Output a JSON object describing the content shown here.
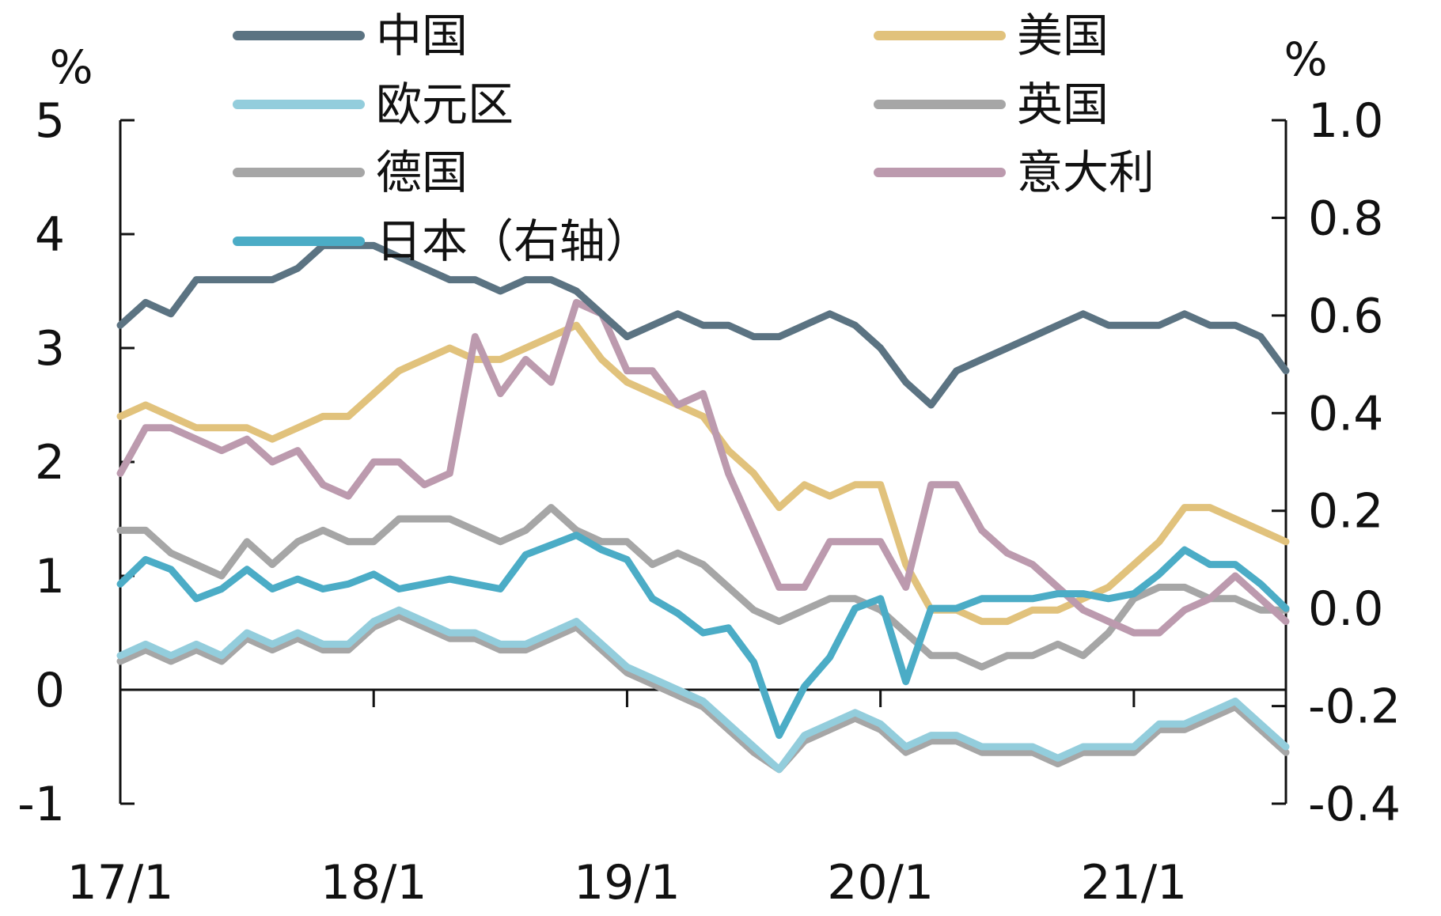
{
  "chart_data": {
    "type": "line",
    "title": "",
    "x_ticks": [
      "17/1",
      "18/1",
      "19/1",
      "20/1",
      "21/1"
    ],
    "left_axis": {
      "unit": "%",
      "ylim": [
        -1,
        5
      ],
      "ticks": [
        "5",
        "4",
        "3",
        "2",
        "1",
        "0",
        "-1"
      ]
    },
    "right_axis": {
      "unit": "%",
      "ylim": [
        -0.4,
        1.0
      ],
      "ticks": [
        "1.0",
        "0.8",
        "0.6",
        "0.4",
        "0.2",
        "0.0",
        "-0.2",
        "-0.4"
      ]
    },
    "legend_placement": "top",
    "x_range": [
      2017.0,
      2021.6
    ],
    "series": [
      {
        "name": "中国",
        "axis": "left",
        "color": "#5B7382",
        "x": [
          2017.0,
          2017.1,
          2017.2,
          2017.3,
          2017.4,
          2017.5,
          2017.6,
          2017.7,
          2017.8,
          2017.9,
          2018.0,
          2018.1,
          2018.2,
          2018.3,
          2018.4,
          2018.5,
          2018.6,
          2018.7,
          2018.8,
          2018.9,
          2019.0,
          2019.1,
          2019.2,
          2019.3,
          2019.4,
          2019.5,
          2019.6,
          2019.7,
          2019.8,
          2019.9,
          2020.0,
          2020.1,
          2020.2,
          2020.3,
          2020.4,
          2020.5,
          2020.6,
          2020.7,
          2020.8,
          2020.9,
          2021.0,
          2021.1,
          2021.2,
          2021.3,
          2021.4,
          2021.5,
          2021.6
        ],
        "y": [
          3.2,
          3.4,
          3.3,
          3.6,
          3.6,
          3.6,
          3.6,
          3.7,
          3.9,
          3.9,
          3.9,
          3.8,
          3.7,
          3.6,
          3.6,
          3.5,
          3.6,
          3.6,
          3.5,
          3.3,
          3.1,
          3.2,
          3.3,
          3.2,
          3.2,
          3.1,
          3.1,
          3.2,
          3.3,
          3.2,
          3.0,
          2.7,
          2.5,
          2.8,
          2.9,
          3.0,
          3.1,
          3.2,
          3.3,
          3.2,
          3.2,
          3.2,
          3.3,
          3.2,
          3.2,
          3.1,
          2.8
        ]
      },
      {
        "name": "美国",
        "axis": "left",
        "color": "#E1C27C",
        "x": [
          2017.0,
          2017.1,
          2017.2,
          2017.3,
          2017.4,
          2017.5,
          2017.6,
          2017.7,
          2017.8,
          2017.9,
          2018.0,
          2018.1,
          2018.2,
          2018.3,
          2018.4,
          2018.5,
          2018.6,
          2018.7,
          2018.8,
          2018.9,
          2019.0,
          2019.1,
          2019.2,
          2019.3,
          2019.4,
          2019.5,
          2019.6,
          2019.7,
          2019.8,
          2019.9,
          2020.0,
          2020.1,
          2020.2,
          2020.3,
          2020.4,
          2020.5,
          2020.6,
          2020.7,
          2020.8,
          2020.9,
          2021.0,
          2021.1,
          2021.2,
          2021.3,
          2021.4,
          2021.5,
          2021.6
        ],
        "y": [
          2.4,
          2.5,
          2.4,
          2.3,
          2.3,
          2.3,
          2.2,
          2.3,
          2.4,
          2.4,
          2.6,
          2.8,
          2.9,
          3.0,
          2.9,
          2.9,
          3.0,
          3.1,
          3.2,
          2.9,
          2.7,
          2.6,
          2.5,
          2.4,
          2.1,
          1.9,
          1.6,
          1.8,
          1.7,
          1.8,
          1.8,
          1.1,
          0.7,
          0.7,
          0.6,
          0.6,
          0.7,
          0.7,
          0.8,
          0.9,
          1.1,
          1.3,
          1.6,
          1.6,
          1.5,
          1.4,
          1.3
        ]
      },
      {
        "name": "欧元区",
        "axis": "left",
        "color": "#93CDDC",
        "x": [
          2017.0,
          2017.1,
          2017.2,
          2017.3,
          2017.4,
          2017.5,
          2017.6,
          2017.7,
          2017.8,
          2017.9,
          2018.0,
          2018.1,
          2018.2,
          2018.3,
          2018.4,
          2018.5,
          2018.6,
          2018.7,
          2018.8,
          2018.9,
          2019.0,
          2019.1,
          2019.2,
          2019.3,
          2019.4,
          2019.5,
          2019.6,
          2019.7,
          2019.8,
          2019.9,
          2020.0,
          2020.1,
          2020.2,
          2020.3,
          2020.4,
          2020.5,
          2020.6,
          2020.7,
          2020.8,
          2020.9,
          2021.0,
          2021.1,
          2021.2,
          2021.3,
          2021.4,
          2021.5,
          2021.6
        ],
        "y": [
          0.3,
          0.4,
          0.3,
          0.4,
          0.3,
          0.5,
          0.4,
          0.5,
          0.4,
          0.4,
          0.6,
          0.7,
          0.6,
          0.5,
          0.5,
          0.4,
          0.4,
          0.5,
          0.6,
          0.4,
          0.2,
          0.1,
          0.0,
          -0.1,
          -0.3,
          -0.5,
          -0.7,
          -0.4,
          -0.3,
          -0.2,
          -0.3,
          -0.5,
          -0.4,
          -0.4,
          -0.5,
          -0.5,
          -0.5,
          -0.6,
          -0.5,
          -0.5,
          -0.5,
          -0.3,
          -0.3,
          -0.2,
          -0.1,
          -0.3,
          -0.5
        ]
      },
      {
        "name": "英国",
        "axis": "left",
        "color": "#A6A6A6",
        "x": [
          2017.0,
          2017.1,
          2017.2,
          2017.3,
          2017.4,
          2017.5,
          2017.6,
          2017.7,
          2017.8,
          2017.9,
          2018.0,
          2018.1,
          2018.2,
          2018.3,
          2018.4,
          2018.5,
          2018.6,
          2018.7,
          2018.8,
          2018.9,
          2019.0,
          2019.1,
          2019.2,
          2019.3,
          2019.4,
          2019.5,
          2019.6,
          2019.7,
          2019.8,
          2019.9,
          2020.0,
          2020.1,
          2020.2,
          2020.3,
          2020.4,
          2020.5,
          2020.6,
          2020.7,
          2020.8,
          2020.9,
          2021.0,
          2021.1,
          2021.2,
          2021.3,
          2021.4,
          2021.5,
          2021.6
        ],
        "y": [
          1.4,
          1.4,
          1.2,
          1.1,
          1.0,
          1.3,
          1.1,
          1.3,
          1.4,
          1.3,
          1.3,
          1.5,
          1.5,
          1.5,
          1.4,
          1.3,
          1.4,
          1.6,
          1.4,
          1.3,
          1.3,
          1.1,
          1.2,
          1.1,
          0.9,
          0.7,
          0.6,
          0.7,
          0.8,
          0.8,
          0.7,
          0.5,
          0.3,
          0.3,
          0.2,
          0.3,
          0.3,
          0.4,
          0.3,
          0.5,
          0.8,
          0.9,
          0.9,
          0.8,
          0.8,
          0.7,
          0.7
        ]
      },
      {
        "name": "德国",
        "axis": "left",
        "color": "#A6A6A6",
        "x": [
          2017.0,
          2017.1,
          2017.2,
          2017.3,
          2017.4,
          2017.5,
          2017.6,
          2017.7,
          2017.8,
          2017.9,
          2018.0,
          2018.1,
          2018.2,
          2018.3,
          2018.4,
          2018.5,
          2018.6,
          2018.7,
          2018.8,
          2018.9,
          2019.0,
          2019.1,
          2019.2,
          2019.3,
          2019.4,
          2019.5,
          2019.6,
          2019.7,
          2019.8,
          2019.9,
          2020.0,
          2020.1,
          2020.2,
          2020.3,
          2020.4,
          2020.5,
          2020.6,
          2020.7,
          2020.8,
          2020.9,
          2021.0,
          2021.1,
          2021.2,
          2021.3,
          2021.4,
          2021.5,
          2021.6
        ],
        "y": [
          0.25,
          0.35,
          0.25,
          0.35,
          0.25,
          0.45,
          0.35,
          0.45,
          0.35,
          0.35,
          0.55,
          0.65,
          0.55,
          0.45,
          0.45,
          0.35,
          0.35,
          0.45,
          0.55,
          0.35,
          0.15,
          0.05,
          -0.05,
          -0.15,
          -0.35,
          -0.55,
          -0.7,
          -0.45,
          -0.35,
          -0.25,
          -0.35,
          -0.55,
          -0.45,
          -0.45,
          -0.55,
          -0.55,
          -0.55,
          -0.65,
          -0.55,
          -0.55,
          -0.55,
          -0.35,
          -0.35,
          -0.25,
          -0.15,
          -0.35,
          -0.55
        ]
      },
      {
        "name": "意大利",
        "axis": "left",
        "color": "#BC9AAE",
        "x": [
          2017.0,
          2017.1,
          2017.2,
          2017.3,
          2017.4,
          2017.5,
          2017.6,
          2017.7,
          2017.8,
          2017.9,
          2018.0,
          2018.1,
          2018.2,
          2018.3,
          2018.4,
          2018.5,
          2018.6,
          2018.7,
          2018.8,
          2018.9,
          2019.0,
          2019.1,
          2019.2,
          2019.3,
          2019.4,
          2019.5,
          2019.6,
          2019.7,
          2019.8,
          2019.9,
          2020.0,
          2020.1,
          2020.2,
          2020.3,
          2020.4,
          2020.5,
          2020.6,
          2020.7,
          2020.8,
          2020.9,
          2021.0,
          2021.1,
          2021.2,
          2021.3,
          2021.4,
          2021.5,
          2021.6
        ],
        "y": [
          1.9,
          2.3,
          2.3,
          2.2,
          2.1,
          2.2,
          2.0,
          2.1,
          1.8,
          1.7,
          2.0,
          2.0,
          1.8,
          1.9,
          3.1,
          2.6,
          2.9,
          2.7,
          3.4,
          3.3,
          2.8,
          2.8,
          2.5,
          2.6,
          1.9,
          1.4,
          0.9,
          0.9,
          1.3,
          1.3,
          1.3,
          0.9,
          1.8,
          1.8,
          1.4,
          1.2,
          1.1,
          0.9,
          0.7,
          0.6,
          0.5,
          0.5,
          0.7,
          0.8,
          1.0,
          0.8,
          0.6
        ]
      },
      {
        "name": "日本（右轴）",
        "axis": "right",
        "color": "#4BACC6",
        "x": [
          2017.0,
          2017.1,
          2017.2,
          2017.3,
          2017.4,
          2017.5,
          2017.6,
          2017.7,
          2017.8,
          2017.9,
          2018.0,
          2018.1,
          2018.2,
          2018.3,
          2018.4,
          2018.5,
          2018.6,
          2018.7,
          2018.8,
          2018.9,
          2019.0,
          2019.1,
          2019.2,
          2019.3,
          2019.4,
          2019.5,
          2019.6,
          2019.7,
          2019.8,
          2019.9,
          2020.0,
          2020.1,
          2020.2,
          2020.3,
          2020.4,
          2020.5,
          2020.6,
          2020.7,
          2020.8,
          2020.9,
          2021.0,
          2021.1,
          2021.2,
          2021.3,
          2021.4,
          2021.5,
          2021.6
        ],
        "y": [
          0.05,
          0.1,
          0.08,
          0.02,
          0.04,
          0.08,
          0.04,
          0.06,
          0.04,
          0.05,
          0.07,
          0.04,
          0.05,
          0.06,
          0.05,
          0.04,
          0.11,
          0.13,
          0.15,
          0.12,
          0.1,
          0.02,
          -0.01,
          -0.05,
          -0.04,
          -0.11,
          -0.26,
          -0.16,
          -0.1,
          0.0,
          0.02,
          -0.15,
          0.0,
          0.0,
          0.02,
          0.02,
          0.02,
          0.03,
          0.03,
          0.02,
          0.03,
          0.07,
          0.12,
          0.09,
          0.09,
          0.05,
          0.0
        ]
      }
    ]
  }
}
